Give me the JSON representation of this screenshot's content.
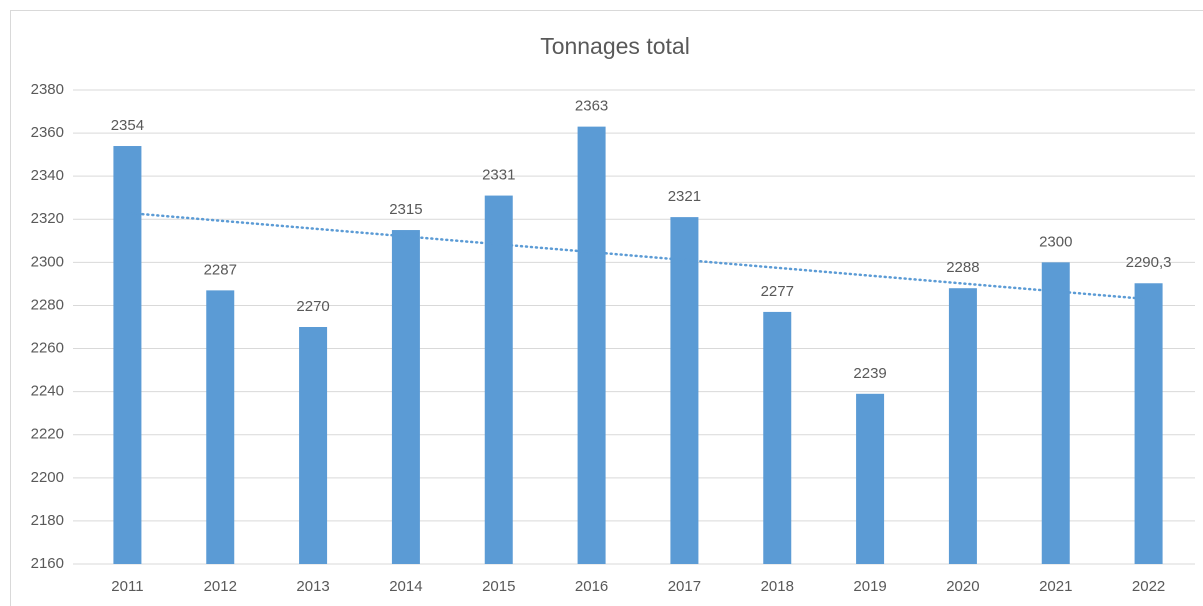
{
  "chart_data": {
    "type": "bar",
    "title": "Tonnages total",
    "categories": [
      "2011",
      "2012",
      "2013",
      "2014",
      "2015",
      "2016",
      "2017",
      "2018",
      "2019",
      "2020",
      "2021",
      "2022"
    ],
    "values": [
      2354,
      2287,
      2270,
      2315,
      2331,
      2363,
      2321,
      2277,
      2239,
      2288,
      2300,
      2290.3
    ],
    "value_labels": [
      "2354",
      "2287",
      "2270",
      "2315",
      "2331",
      "2363",
      "2321",
      "2277",
      "2239",
      "2288",
      "2300",
      "2290,3"
    ],
    "color": "#5b9bd5",
    "ylim": [
      2160,
      2380
    ],
    "yticks": [
      2160,
      2180,
      2200,
      2220,
      2240,
      2260,
      2280,
      2300,
      2320,
      2340,
      2360,
      2380
    ],
    "grid": true,
    "trendline": "linear"
  }
}
